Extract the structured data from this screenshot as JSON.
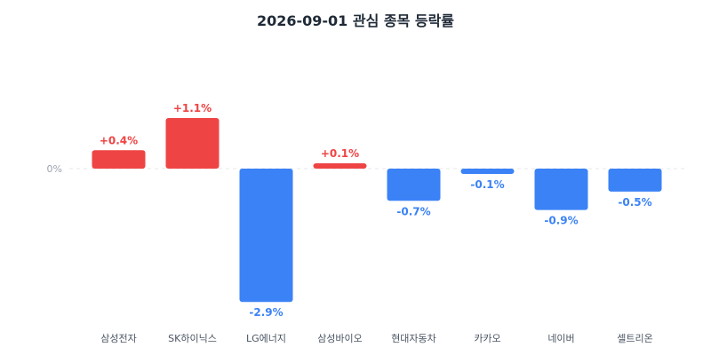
{
  "chart_data": {
    "type": "bar",
    "title": "2026-09-01 관심 종목 등락률",
    "xlabel": "",
    "ylabel": "",
    "ylim": [
      -2.9,
      1.1
    ],
    "y_tick_labels": [
      "0%"
    ],
    "categories": [
      "삼성전자",
      "SK하이닉스",
      "LG에너지",
      "삼성바이오",
      "현대자동차",
      "카카오",
      "네이버",
      "셀트리온"
    ],
    "values": [
      0.4,
      1.1,
      -2.9,
      0.1,
      -0.7,
      -0.1,
      -0.9,
      -0.5
    ],
    "data_labels": [
      "+0.4%",
      "+1.1%",
      "-2.9%",
      "+0.1%",
      "-0.7%",
      "-0.1%",
      "-0.9%",
      "-0.5%"
    ],
    "grid": false,
    "zero_line": "dashed",
    "colors": {
      "positive": "#ef4444",
      "negative": "#3b82f6",
      "title": "#1f2a37",
      "axis_text": "#9ca3af",
      "category_text": "#4b5563",
      "zero_line": "#e5e7eb"
    }
  }
}
